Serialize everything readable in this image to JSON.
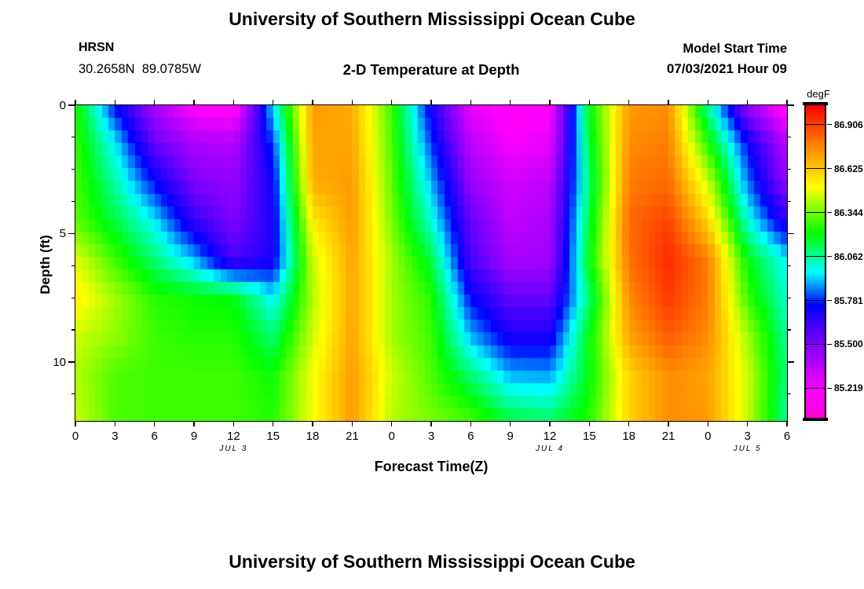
{
  "chart_data": {
    "type": "heatmap",
    "title": "University of Southern Mississippi Ocean Cube",
    "bottom_title": "University of Southern Mississippi Ocean Cube",
    "subtitle": "2-D Temperature at Depth",
    "station_id": "HRSN",
    "station_coords": "30.2658N  89.0785W",
    "model_start_label": "Model Start Time",
    "model_start_value": "07/03/2021 Hour 09",
    "xlabel": "Forecast Time(Z)",
    "ylabel": "Depth (ft)",
    "x_axis": {
      "tick_hours": [
        0,
        3,
        6,
        9,
        12,
        15,
        18,
        21,
        24,
        27,
        30,
        33,
        36,
        39,
        42,
        45,
        48,
        51,
        54
      ],
      "tick_labels": [
        "0",
        "3",
        "6",
        "9",
        "12",
        "15",
        "18",
        "21",
        "0",
        "3",
        "6",
        "9",
        "12",
        "15",
        "18",
        "21",
        "0",
        "3",
        "6"
      ],
      "day_labels": [
        {
          "text": "JUL 3",
          "hour": 12
        },
        {
          "text": "JUL 4",
          "hour": 36
        },
        {
          "text": "JUL 5",
          "hour": 51
        }
      ],
      "range_hours": [
        0,
        54
      ]
    },
    "y_axis": {
      "tick_labels": [
        "0",
        "5",
        "10"
      ],
      "tick_values": [
        0,
        5,
        10
      ],
      "minor_tick_step": 1.25,
      "range_ft": [
        0,
        12.3
      ]
    },
    "colorbar": {
      "unit": "degF",
      "tick_labels": [
        "86.906",
        "86.625",
        "86.344",
        "86.062",
        "85.781",
        "85.500",
        "85.219"
      ],
      "tick_values": [
        86.906,
        86.625,
        86.344,
        86.062,
        85.781,
        85.5,
        85.219
      ],
      "vmin": 85.03,
      "vmax": 87.03,
      "hue_anchors": [
        [
          85.03,
          310
        ],
        [
          85.2,
          300
        ],
        [
          85.5,
          270
        ],
        [
          85.75,
          240
        ],
        [
          85.96,
          180
        ],
        [
          86.21,
          120
        ],
        [
          86.51,
          60
        ],
        [
          86.75,
          33
        ],
        [
          87.03,
          0
        ]
      ]
    },
    "grid": {
      "time_hours": [
        0,
        3,
        6,
        9,
        12,
        15,
        18,
        21,
        24,
        27,
        30,
        33,
        36,
        39,
        42,
        45,
        48,
        51,
        54
      ],
      "depths_ft": [
        0,
        1.5,
        3,
        4.5,
        6,
        7.5,
        9,
        10.5,
        12.3
      ],
      "temps_degF": [
        [
          86.25,
          85.75,
          85.4,
          85.18,
          85.12,
          85.95,
          86.72,
          86.68,
          86.28,
          85.7,
          85.25,
          85.15,
          85.18,
          86.2,
          86.72,
          86.75,
          86.05,
          85.45,
          85.12
        ],
        [
          86.28,
          85.95,
          85.55,
          85.4,
          85.38,
          85.8,
          86.7,
          86.7,
          86.3,
          85.8,
          85.35,
          85.22,
          85.25,
          86.15,
          86.75,
          86.78,
          86.25,
          85.75,
          85.35
        ],
        [
          86.3,
          86.05,
          85.75,
          85.5,
          85.45,
          85.72,
          86.68,
          86.72,
          86.32,
          85.9,
          85.45,
          85.3,
          85.35,
          86.1,
          86.78,
          86.82,
          86.45,
          85.85,
          85.45
        ],
        [
          86.32,
          86.15,
          85.95,
          85.65,
          85.5,
          85.7,
          86.55,
          86.72,
          86.35,
          86.0,
          85.55,
          85.35,
          85.4,
          86.15,
          86.82,
          86.9,
          86.6,
          86.0,
          85.65
        ],
        [
          86.48,
          86.28,
          86.1,
          85.9,
          85.6,
          85.7,
          86.45,
          86.7,
          86.4,
          86.15,
          85.6,
          85.4,
          85.42,
          86.2,
          86.8,
          86.95,
          86.78,
          86.2,
          85.95
        ],
        [
          86.55,
          86.4,
          86.25,
          86.22,
          86.2,
          85.95,
          86.42,
          86.7,
          86.4,
          86.25,
          85.75,
          85.55,
          85.55,
          86.1,
          86.75,
          86.92,
          86.78,
          86.28,
          86.0
        ],
        [
          86.45,
          86.38,
          86.28,
          86.25,
          86.25,
          86.1,
          86.45,
          86.7,
          86.4,
          86.28,
          85.9,
          85.7,
          85.7,
          86.2,
          86.7,
          86.85,
          86.75,
          86.4,
          86.05
        ],
        [
          86.42,
          86.3,
          86.28,
          86.28,
          86.28,
          86.22,
          86.5,
          86.72,
          86.45,
          86.3,
          86.1,
          85.9,
          85.88,
          86.2,
          86.6,
          86.75,
          86.7,
          86.45,
          86.08
        ],
        [
          86.45,
          86.3,
          86.28,
          86.28,
          86.28,
          86.25,
          86.5,
          86.72,
          86.42,
          86.35,
          86.3,
          86.15,
          86.12,
          86.25,
          86.6,
          86.75,
          86.72,
          86.45,
          86.05
        ]
      ]
    }
  }
}
